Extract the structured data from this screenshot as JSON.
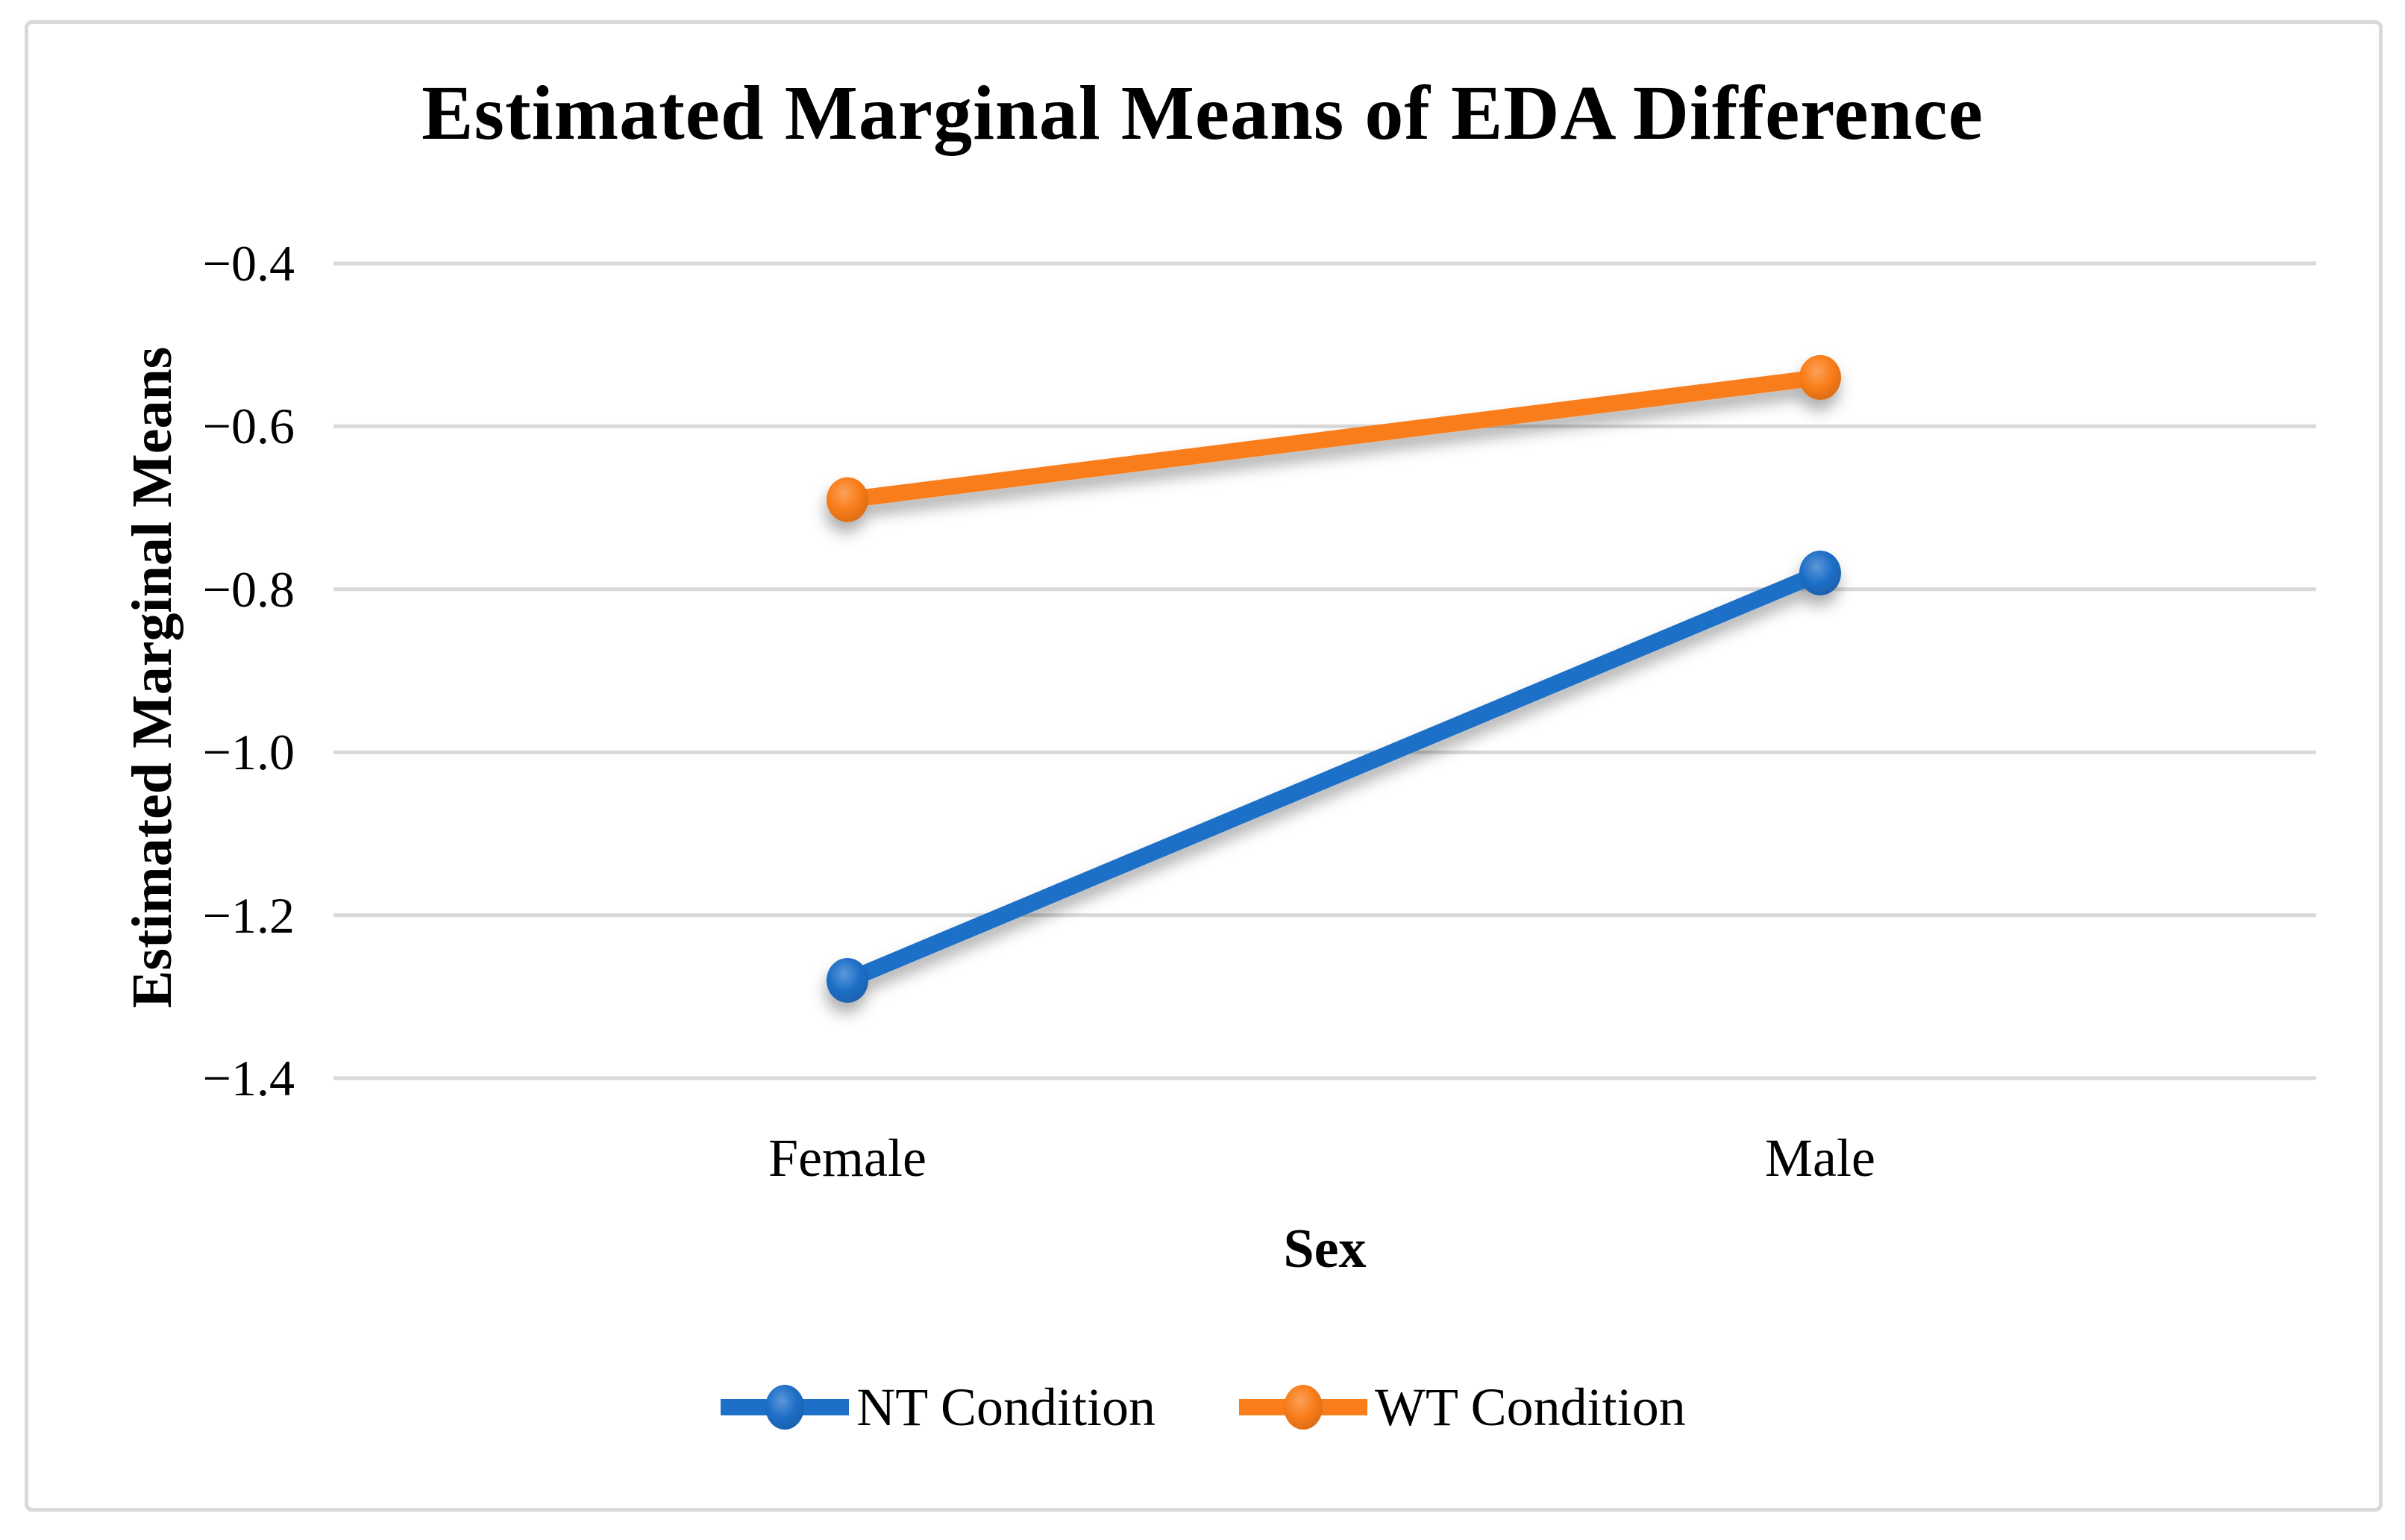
{
  "chart_data": {
    "type": "line",
    "title": "Estimated Marginal Means of EDA Difference",
    "xlabel": "Sex",
    "ylabel": "Estimated Marginal Means",
    "categories": [
      "Female",
      "Male"
    ],
    "series": [
      {
        "name": "NT Condition",
        "values": [
          -1.28,
          -0.78
        ],
        "color": "#1e6fc8"
      },
      {
        "name": "WT Condition",
        "values": [
          -0.69,
          -0.54
        ],
        "color": "#fa7d1a"
      }
    ],
    "ylim": [
      -1.4,
      -0.4
    ],
    "yticks": [
      -0.4,
      -0.6,
      -0.8,
      -1.0,
      -1.2,
      -1.4
    ],
    "ytick_labels": [
      "−0.4",
      "−0.6",
      "−0.8",
      "−1.0",
      "−1.2",
      "−1.4"
    ],
    "grid": true,
    "legend_position": "bottom",
    "colors": {
      "gridline": "#d9d9d9",
      "frame": "#d9d9d9",
      "text": "#000000",
      "background": "#ffffff"
    }
  }
}
